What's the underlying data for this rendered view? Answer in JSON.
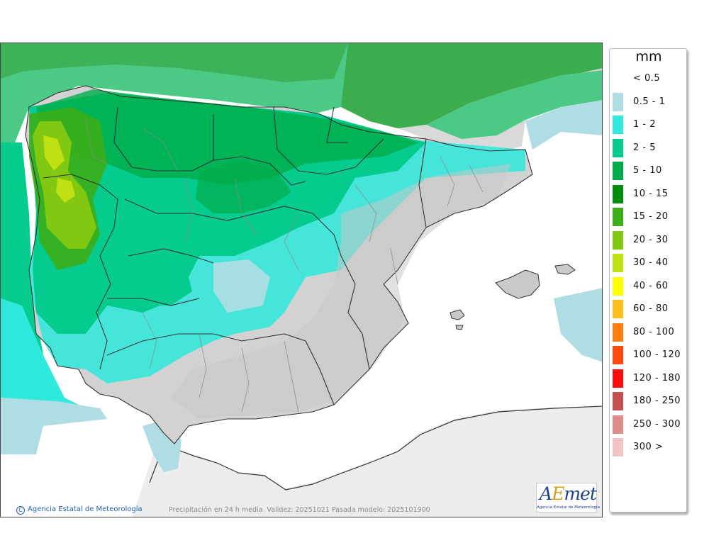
{
  "map": {
    "caption": "Precipitación en 24 h media. Validez: 20251021 Pasada modelo: 2025101900",
    "credit": "Agencia Estatal de Meteorología",
    "credit_symbol": "C",
    "logo_text_a": "A",
    "logo_text_b": "E",
    "logo_text_c": "met",
    "logo_subtext": "Agencia Estatal de Meteorología"
  },
  "legend": {
    "unit": "mm",
    "entries": [
      {
        "label": "< 0.5",
        "color": "#ffffff"
      },
      {
        "label": "0.5 - 1",
        "color": "#b0dde3"
      },
      {
        "label": "1 - 2",
        "color": "#2ee9dc"
      },
      {
        "label": "2 - 5",
        "color": "#05cc8e"
      },
      {
        "label": "5 - 10",
        "color": "#00ac4a"
      },
      {
        "label": "10 - 15",
        "color": "#008c0c"
      },
      {
        "label": "15 - 20",
        "color": "#3cae18"
      },
      {
        "label": "20 - 30",
        "color": "#80c812"
      },
      {
        "label": "30 - 40",
        "color": "#c0e012"
      },
      {
        "label": "40 - 60",
        "color": "#ffff00"
      },
      {
        "label": "60 - 80",
        "color": "#ffbe1a"
      },
      {
        "label": "80 - 100",
        "color": "#ff7e14"
      },
      {
        "label": "100 - 120",
        "color": "#ff4a0e"
      },
      {
        "label": "120 - 180",
        "color": "#ff0c0c"
      },
      {
        "label": "180 - 250",
        "color": "#c65050"
      },
      {
        "label": "250 - 300",
        "color": "#dc8a8a"
      },
      {
        "label": "300 >",
        "color": "#f0c4c4"
      }
    ]
  },
  "colors": {
    "sea": "#ffffff",
    "foreign_land": "#ececec",
    "dry_relief": "#cfcfcf",
    "border": "#333333"
  }
}
